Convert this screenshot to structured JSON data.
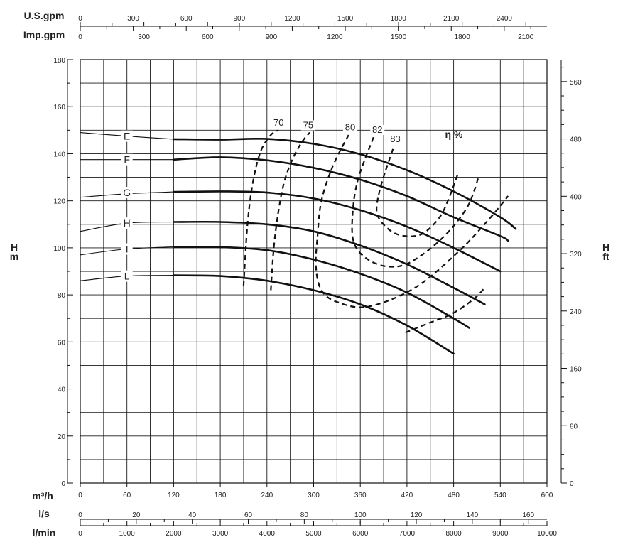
{
  "chart_data": {
    "type": "line",
    "title": "",
    "xlabel": "m³/h",
    "ylabel_left": [
      "H",
      "m"
    ],
    "ylabel_right": [
      "H",
      "ft"
    ],
    "xlim": [
      0,
      600
    ],
    "ylim": [
      0,
      180
    ],
    "ylim_ft": [
      0,
      590.55
    ],
    "grid": true,
    "x_ticks": [
      0,
      60,
      120,
      180,
      240,
      300,
      360,
      420,
      480,
      540,
      600
    ],
    "y_ticks": [
      0,
      20,
      40,
      60,
      80,
      100,
      120,
      140,
      160,
      180
    ],
    "y_ft_ticks": [
      0,
      80,
      160,
      240,
      320,
      400,
      480,
      560
    ],
    "secondary_x_axes": [
      {
        "label": "U.S.gpm",
        "per_m3h": 4.403,
        "ticks": [
          0,
          300,
          600,
          900,
          1200,
          1500,
          1800,
          2100,
          2400
        ]
      },
      {
        "label": "Imp.gpm",
        "per_m3h": 3.666,
        "ticks": [
          0,
          300,
          600,
          900,
          1200,
          1500,
          1800,
          2100
        ]
      },
      {
        "label": "l/s",
        "per_m3h": 0.27778,
        "ticks": [
          0,
          20,
          40,
          60,
          80,
          100,
          120,
          140,
          160
        ]
      },
      {
        "label": "l/min",
        "per_m3h": 16.6667,
        "ticks": [
          0,
          1000,
          2000,
          3000,
          4000,
          5000,
          6000,
          7000,
          8000,
          9000,
          10000
        ]
      }
    ],
    "series": [
      {
        "name": "E",
        "label_at": [
          60,
          147.5
        ],
        "x": [
          0,
          60,
          120,
          180,
          240,
          300,
          360,
          420,
          480,
          540,
          560
        ],
        "y": [
          149,
          147.5,
          146.2,
          146,
          146.3,
          144.2,
          139.8,
          133,
          124,
          113,
          108
        ]
      },
      {
        "name": "F",
        "label_at": [
          60,
          137.5
        ],
        "x": [
          0,
          60,
          120,
          180,
          240,
          300,
          360,
          420,
          480,
          540,
          550
        ],
        "y": [
          137.5,
          137.5,
          137.5,
          138.5,
          137.2,
          134,
          129,
          122,
          113,
          105,
          103
        ]
      },
      {
        "name": "G",
        "label_at": [
          60,
          123.5
        ],
        "x": [
          0,
          60,
          120,
          180,
          240,
          300,
          360,
          420,
          480,
          540
        ],
        "y": [
          121.5,
          123,
          123.8,
          124,
          123.5,
          121,
          116,
          109,
          100,
          90
        ]
      },
      {
        "name": "H",
        "label_at": [
          60,
          110.5
        ],
        "x": [
          0,
          60,
          120,
          180,
          240,
          300,
          360,
          420,
          480,
          520
        ],
        "y": [
          107,
          110.5,
          111,
          111,
          110,
          107,
          101,
          93,
          83,
          76
        ]
      },
      {
        "name": "I",
        "label_at": [
          60,
          99.5
        ],
        "x": [
          0,
          60,
          120,
          180,
          240,
          300,
          360,
          420,
          480,
          500
        ],
        "y": [
          97,
          99.5,
          100.4,
          100.3,
          99,
          95,
          89,
          81,
          70,
          66
        ]
      },
      {
        "name": "L",
        "label_at": [
          60,
          88
        ],
        "x": [
          0,
          60,
          120,
          180,
          240,
          300,
          360,
          420,
          480
        ],
        "y": [
          86,
          88,
          88.3,
          88,
          86,
          82,
          76,
          67,
          55
        ]
      }
    ],
    "efficiency_curves": [
      {
        "name": "70",
        "label_at": [
          255,
          152.5
        ],
        "x": [
          210,
          215,
          222,
          232,
          245,
          255
        ],
        "y": [
          84,
          110,
          128,
          141,
          148,
          150
        ]
      },
      {
        "name": "75",
        "label_at": [
          293,
          151.5
        ],
        "x": [
          245,
          250,
          260,
          272,
          285,
          295
        ],
        "y": [
          82,
          104,
          125,
          137,
          145,
          149
        ]
      },
      {
        "name": "80",
        "label_at": [
          347,
          150.5
        ],
        "x": [
          345,
          325,
          310,
          305,
          303,
          310,
          330,
          370,
          430,
          485,
          525,
          550
        ],
        "y": [
          148,
          135,
          120,
          105,
          92,
          82,
          77,
          75,
          83,
          98,
          112,
          122
        ]
      },
      {
        "name": "82",
        "label_at": [
          382,
          149.5
        ],
        "x": [
          377,
          357,
          350,
          352,
          370,
          397,
          425,
          465,
          497,
          512
        ],
        "y": [
          147,
          129,
          114,
          102,
          95,
          92,
          94,
          104,
          117,
          130
        ]
      },
      {
        "name": "83",
        "label_at": [
          405,
          145.5
        ],
        "x": [
          402,
          387,
          381,
          385,
          400,
          418,
          440,
          462,
          475,
          486
        ],
        "y": [
          142,
          127,
          117,
          112,
          107,
          105,
          106,
          113,
          122,
          132
        ]
      },
      {
        "name": "",
        "x": [
          418,
          448,
          478,
          505,
          520
        ],
        "y": [
          64,
          68,
          72,
          78,
          83
        ]
      }
    ],
    "efficiency_label": "η %"
  }
}
